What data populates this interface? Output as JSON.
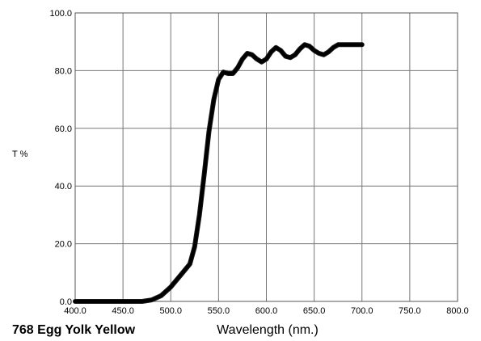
{
  "chart_data": {
    "type": "line",
    "title": "768 Egg Yolk Yellow",
    "xlabel": "Wavelength (nm.)",
    "ylabel": "T %",
    "xlim": [
      400,
      800
    ],
    "ylim": [
      0,
      100
    ],
    "grid": true,
    "x_ticks": [
      "400.0",
      "450.0",
      "500.0",
      "550.0",
      "600.0",
      "650.0",
      "700.0",
      "750.0",
      "800.0"
    ],
    "y_ticks": [
      "0.0",
      "20.0",
      "40.0",
      "60.0",
      "80.0",
      "100.0"
    ],
    "series": [
      {
        "color": "#000000",
        "x": [
          400,
          470,
          480,
          490,
          500,
          510,
          520,
          525,
          530,
          535,
          540,
          545,
          550,
          555,
          560,
          565,
          570,
          575,
          580,
          585,
          590,
          595,
          600,
          605,
          610,
          615,
          620,
          625,
          630,
          635,
          640,
          645,
          650,
          655,
          660,
          665,
          670,
          675,
          680,
          685,
          690,
          695,
          700
        ],
        "y": [
          0,
          0,
          0.5,
          2,
          5,
          9,
          13,
          19,
          30,
          44,
          59,
          70,
          77,
          79.5,
          79,
          79,
          81,
          84,
          86,
          85.5,
          84,
          83,
          84,
          86.5,
          88,
          87,
          85,
          84.5,
          85.5,
          87.5,
          89,
          88.5,
          87,
          86,
          85.5,
          86.5,
          88,
          89,
          89,
          89,
          89,
          89,
          89
        ]
      }
    ]
  }
}
